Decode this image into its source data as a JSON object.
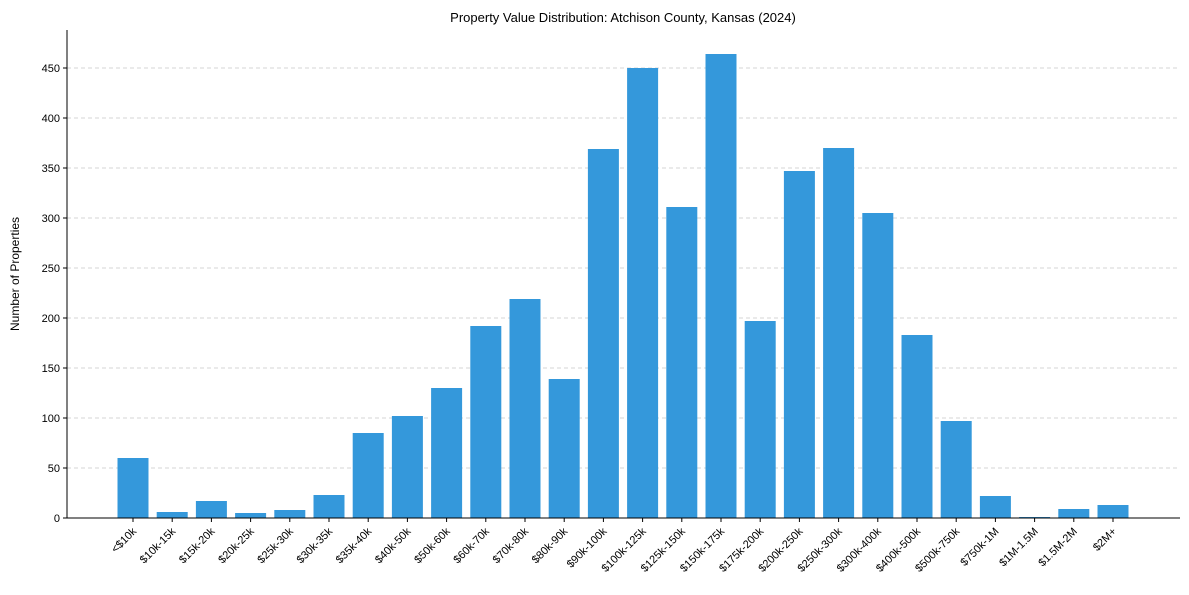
{
  "chart_data": {
    "type": "bar",
    "title": "Property Value Distribution: Atchison County, Kansas (2024)",
    "xlabel": "",
    "ylabel": "Number of Properties",
    "ylim": [
      0,
      488
    ],
    "yticks": [
      0,
      50,
      100,
      150,
      200,
      250,
      300,
      350,
      400,
      450
    ],
    "grid": "y-dashed",
    "bar_color": "#3498db",
    "categories": [
      "<$10k",
      "$10k-15k",
      "$15k-20k",
      "$20k-25k",
      "$25k-30k",
      "$30k-35k",
      "$35k-40k",
      "$40k-50k",
      "$50k-60k",
      "$60k-70k",
      "$70k-80k",
      "$80k-90k",
      "$90k-100k",
      "$100k-125k",
      "$125k-150k",
      "$150k-175k",
      "$175k-200k",
      "$200k-250k",
      "$250k-300k",
      "$300k-400k",
      "$400k-500k",
      "$500k-750k",
      "$750k-1M",
      "$1M-1.5M",
      "$1.5M-2M",
      "$2M+"
    ],
    "values": [
      60,
      6,
      17,
      5,
      8,
      23,
      85,
      102,
      130,
      192,
      219,
      139,
      369,
      450,
      311,
      464,
      197,
      347,
      370,
      305,
      183,
      97,
      22,
      1,
      9,
      13
    ]
  }
}
